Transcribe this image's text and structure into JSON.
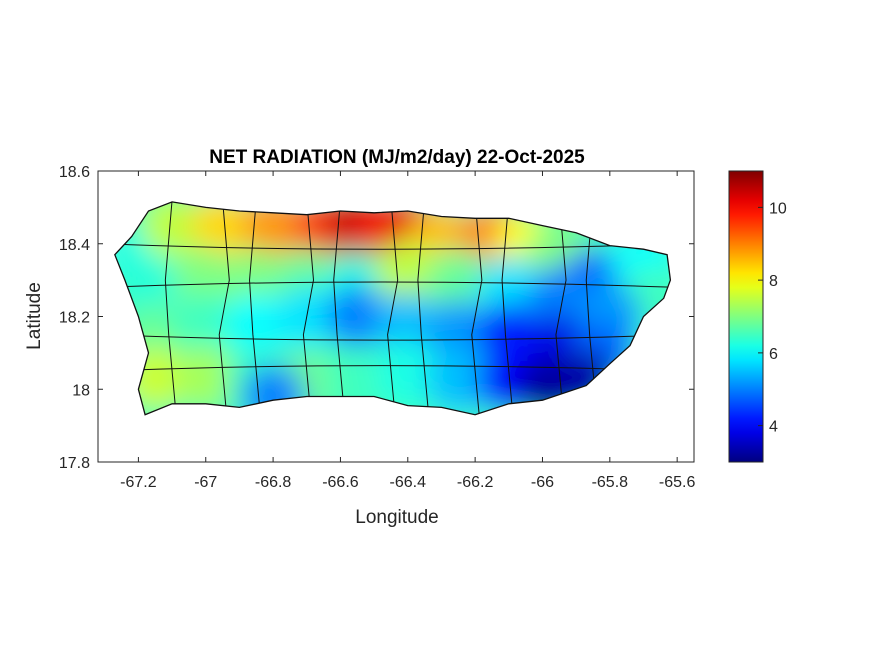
{
  "chart_data": {
    "type": "heatmap",
    "title": "NET RADIATION (MJ/m2/day) 22-Oct-2025",
    "xlabel": "Longitude",
    "ylabel": "Latitude",
    "xlim": [
      -67.32,
      -65.55
    ],
    "ylim": [
      17.8,
      18.6
    ],
    "xticks": [
      -67.2,
      -67,
      -66.8,
      -66.6,
      -66.4,
      -66.2,
      -66,
      -65.8,
      -65.6
    ],
    "xtick_labels": [
      "-67.2",
      "-67",
      "-66.8",
      "-66.6",
      "-66.4",
      "-66.2",
      "-66",
      "-65.8",
      "-65.6"
    ],
    "yticks": [
      17.8,
      18,
      18.2,
      18.4,
      18.6
    ],
    "ytick_labels": [
      "17.8",
      "18",
      "18.2",
      "18.4",
      "18.6"
    ],
    "colorbar": {
      "range": [
        3,
        11
      ],
      "ticks": [
        4,
        6,
        8,
        10
      ],
      "tick_labels": [
        "4",
        "6",
        "8",
        "10"
      ],
      "colormap": "jet"
    },
    "field_samples": [
      [
        -67.2,
        18.38,
        6.2
      ],
      [
        -67.1,
        18.45,
        7.5
      ],
      [
        -66.95,
        18.45,
        8.3
      ],
      [
        -66.8,
        18.45,
        8.8
      ],
      [
        -66.65,
        18.45,
        9.5
      ],
      [
        -66.55,
        18.46,
        10.4
      ],
      [
        -66.45,
        18.45,
        9.8
      ],
      [
        -66.4,
        18.44,
        10.2
      ],
      [
        -66.3,
        18.42,
        8.5
      ],
      [
        -66.15,
        18.42,
        9.0
      ],
      [
        -66.05,
        18.4,
        8.0
      ],
      [
        -65.95,
        18.38,
        7.0
      ],
      [
        -65.85,
        18.3,
        4.8
      ],
      [
        -65.7,
        18.35,
        6.0
      ],
      [
        -65.68,
        18.25,
        6.5
      ],
      [
        -67.15,
        18.28,
        6.3
      ],
      [
        -67.0,
        18.3,
        7.0
      ],
      [
        -66.85,
        18.3,
        7.0
      ],
      [
        -66.7,
        18.3,
        6.8
      ],
      [
        -66.55,
        18.28,
        6.2
      ],
      [
        -66.4,
        18.32,
        7.5
      ],
      [
        -66.25,
        18.3,
        6.8
      ],
      [
        -66.1,
        18.28,
        5.8
      ],
      [
        -65.95,
        18.25,
        5.0
      ],
      [
        -65.8,
        18.2,
        5.2
      ],
      [
        -67.15,
        18.15,
        6.8
      ],
      [
        -67.0,
        18.18,
        6.5
      ],
      [
        -66.85,
        18.18,
        6.0
      ],
      [
        -66.7,
        18.2,
        5.8
      ],
      [
        -66.55,
        18.2,
        5.0
      ],
      [
        -66.4,
        18.18,
        5.5
      ],
      [
        -66.25,
        18.16,
        5.2
      ],
      [
        -66.1,
        18.15,
        4.2
      ],
      [
        -65.95,
        18.12,
        3.8
      ],
      [
        -65.82,
        18.1,
        4.8
      ],
      [
        -67.15,
        18.03,
        7.6
      ],
      [
        -67.0,
        18.03,
        7.3
      ],
      [
        -66.85,
        18.02,
        6.5
      ],
      [
        -66.7,
        18.02,
        6.9
      ],
      [
        -66.55,
        18.03,
        6.5
      ],
      [
        -66.4,
        18.04,
        6.2
      ],
      [
        -66.25,
        18.02,
        5.5
      ],
      [
        -66.1,
        18.02,
        4.0
      ],
      [
        -65.98,
        18.0,
        3.2
      ],
      [
        -65.88,
        18.02,
        3.3
      ],
      [
        -66.8,
        17.98,
        5.0
      ]
    ]
  }
}
